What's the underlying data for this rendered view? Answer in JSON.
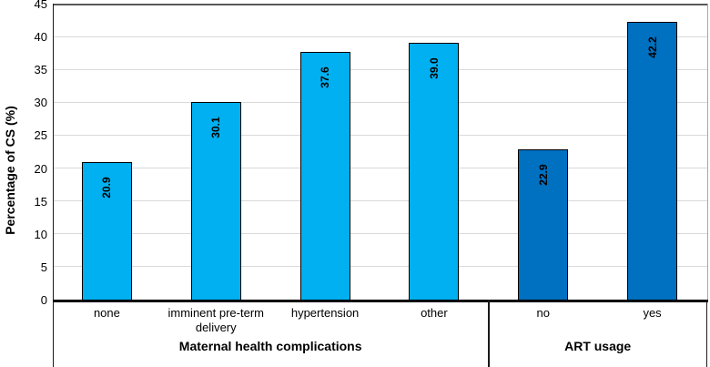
{
  "chart_data": {
    "type": "bar",
    "title": "",
    "xlabel": "",
    "ylabel": "Percentage of CS (%)",
    "ylim": [
      0,
      45
    ],
    "ytick_step": 5,
    "ytick_labels": [
      "0",
      "5",
      "10",
      "15",
      "20",
      "25",
      "30",
      "35",
      "40",
      "45"
    ],
    "grid": "horizontal",
    "legend": "none",
    "value_label_style": "inside-end, rotated reading bottom-to-top, bold",
    "groups": [
      {
        "label": "Maternal health complications",
        "bar_color": "#00B0F0",
        "categories": [
          "none",
          "imminent pre-term delivery",
          "hypertension",
          "other"
        ],
        "values": [
          20.9,
          30.1,
          37.6,
          39.0
        ],
        "value_labels": [
          "20.9",
          "30.1",
          "37.6",
          "39.0"
        ]
      },
      {
        "label": "ART usage",
        "bar_color": "#0070C0",
        "categories": [
          "no",
          "yes"
        ],
        "values": [
          22.9,
          42.2
        ],
        "value_labels": [
          "22.9",
          "42.2"
        ]
      }
    ],
    "style": {
      "background": "#FFFFFF",
      "text_color": "#000000",
      "bar_border": "#000000",
      "gridline": "#D9D9D9",
      "axis_line": "#000000",
      "plot_top_border": "#595959",
      "plot_right_border": "#A6A6A6",
      "group_divider": "#1A1A1A"
    }
  }
}
